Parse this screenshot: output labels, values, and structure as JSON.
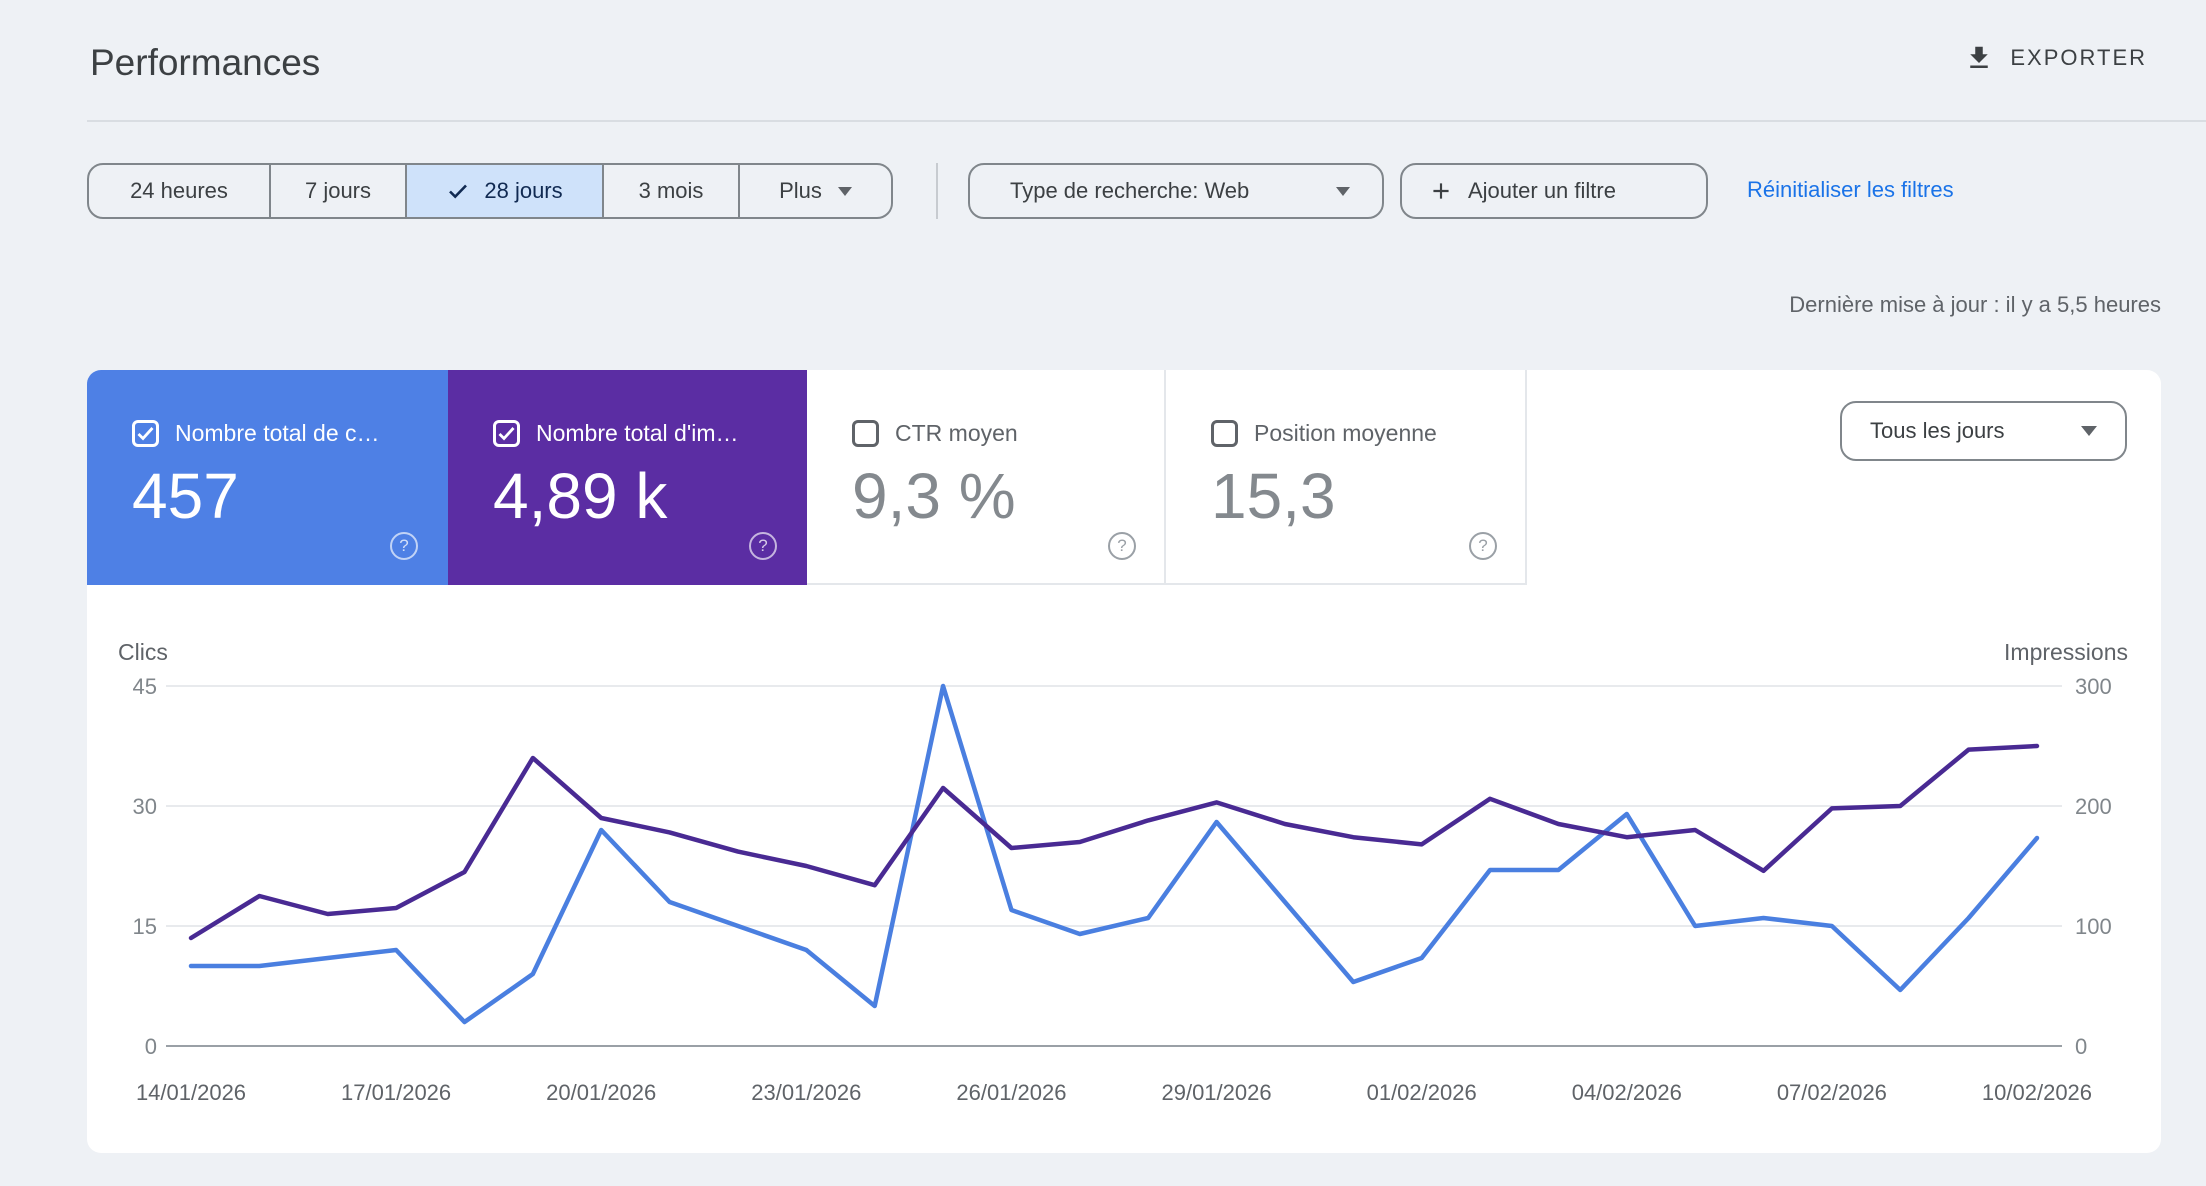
{
  "header": {
    "title": "Performances",
    "export_label": "EXPORTER"
  },
  "filters": {
    "date_ranges": [
      {
        "label": "24 heures",
        "selected": false
      },
      {
        "label": "7 jours",
        "selected": false
      },
      {
        "label": "28 jours",
        "selected": true
      },
      {
        "label": "3 mois",
        "selected": false
      },
      {
        "label": "Plus",
        "selected": false,
        "has_caret": true
      }
    ],
    "search_type": "Type de recherche: Web",
    "add_filter": "Ajouter un filtre",
    "reset_filters": "Réinitialiser les filtres"
  },
  "status": {
    "last_update": "Dernière mise à jour : il y a 5,5 heures"
  },
  "metric_cards": [
    {
      "label": "Nombre total de c…",
      "value": "457",
      "checked": true,
      "color": "#4e80e5",
      "text_color": "#ffffff"
    },
    {
      "label": "Nombre total d'im…",
      "value": "4,89 k",
      "checked": true,
      "color": "#5b2da3",
      "text_color": "#ffffff"
    },
    {
      "label": "CTR moyen",
      "value": "9,3 %",
      "checked": false
    },
    {
      "label": "Position moyenne",
      "value": "15,3",
      "checked": false
    }
  ],
  "granularity_select": {
    "value": "Tous les jours"
  },
  "chart_data": {
    "type": "line",
    "dates": [
      "14/01/2026",
      "15/01/2026",
      "16/01/2026",
      "17/01/2026",
      "18/01/2026",
      "19/01/2026",
      "20/01/2026",
      "21/01/2026",
      "22/01/2026",
      "23/01/2026",
      "24/01/2026",
      "25/01/2026",
      "26/01/2026",
      "27/01/2026",
      "28/01/2026",
      "29/01/2026",
      "30/01/2026",
      "31/01/2026",
      "01/02/2026",
      "02/02/2026",
      "03/02/2026",
      "04/02/2026",
      "05/02/2026",
      "06/02/2026",
      "07/02/2026",
      "08/02/2026",
      "09/02/2026",
      "10/02/2026"
    ],
    "series": [
      {
        "name": "Clics",
        "axis": "left",
        "color": "#4a7fe0",
        "values": [
          10,
          10,
          11,
          12,
          3,
          9,
          27,
          18,
          15,
          12,
          5,
          45,
          17,
          14,
          16,
          28,
          18,
          8,
          11,
          22,
          22,
          29,
          15,
          16,
          15,
          7,
          16,
          26
        ]
      },
      {
        "name": "Impressions",
        "axis": "right",
        "color": "#492a93",
        "values": [
          90,
          125,
          110,
          115,
          145,
          240,
          190,
          178,
          162,
          150,
          134,
          215,
          165,
          170,
          188,
          203,
          185,
          174,
          168,
          206,
          185,
          174,
          180,
          146,
          198,
          200,
          247,
          250
        ]
      }
    ],
    "left_axis": {
      "label": "Clics",
      "ticks": [
        0,
        15,
        30,
        45
      ],
      "max": 45
    },
    "right_axis": {
      "label": "Impressions",
      "ticks": [
        0,
        100,
        200,
        300
      ],
      "max": 300
    },
    "x_tick_labels": [
      "14/01/2026",
      "17/01/2026",
      "20/01/2026",
      "23/01/2026",
      "26/01/2026",
      "29/01/2026",
      "01/02/2026",
      "04/02/2026",
      "07/02/2026",
      "10/02/2026"
    ],
    "grid": true,
    "legend_position": "none"
  }
}
